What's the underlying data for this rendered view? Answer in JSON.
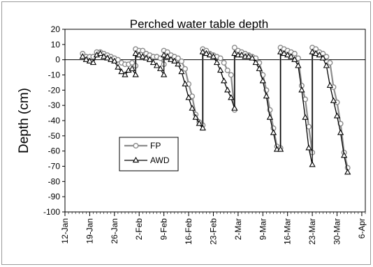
{
  "chart_data": {
    "type": "line",
    "title": "Perched water table  depth",
    "xlabel": "",
    "ylabel": "Depth (cm)",
    "ylim": [
      -100,
      20
    ],
    "yticks": [
      20,
      10,
      0,
      -10,
      -20,
      -30,
      -40,
      -50,
      -60,
      -70,
      -80,
      -90,
      -100
    ],
    "xlim": [
      "2008-01-12",
      "2008-04-06"
    ],
    "xtick_labels": [
      "12-Jan",
      "19-Jan",
      "26-Jan",
      "2-Feb",
      "9-Feb",
      "16-Feb",
      "23-Feb",
      "2-Mar",
      "9-Mar",
      "16-Mar",
      "23-Mar",
      "30-Mar",
      "6-Apr"
    ],
    "grid": false,
    "zero_line": true,
    "legend_position": "lower-left",
    "series": [
      {
        "name": "FP",
        "color": "#8c8c8c",
        "marker": "circle",
        "points": [
          [
            "2008-01-17",
            4
          ],
          [
            "2008-01-18",
            2
          ],
          [
            "2008-01-19",
            2
          ],
          [
            "2008-01-20",
            2
          ],
          [
            "2008-01-21",
            5
          ],
          [
            "2008-01-22",
            5
          ],
          [
            "2008-01-23",
            4
          ],
          [
            "2008-01-24",
            3
          ],
          [
            "2008-01-25",
            2
          ],
          [
            "2008-01-26",
            1
          ],
          [
            "2008-01-27",
            0
          ],
          [
            "2008-01-28",
            -2
          ],
          [
            "2008-01-29",
            -3
          ],
          [
            "2008-01-30",
            -3
          ],
          [
            "2008-01-31",
            -2
          ],
          [
            "2008-02-01",
            -4
          ],
          [
            "2008-02-01",
            7
          ],
          [
            "2008-02-02",
            6
          ],
          [
            "2008-02-03",
            6
          ],
          [
            "2008-02-04",
            4
          ],
          [
            "2008-02-05",
            3
          ],
          [
            "2008-02-06",
            2
          ],
          [
            "2008-02-07",
            2
          ],
          [
            "2008-02-08",
            1
          ],
          [
            "2008-02-09",
            -3
          ],
          [
            "2008-02-09",
            6
          ],
          [
            "2008-02-10",
            5
          ],
          [
            "2008-02-11",
            3
          ],
          [
            "2008-02-12",
            2
          ],
          [
            "2008-02-13",
            1
          ],
          [
            "2008-02-14",
            -1
          ],
          [
            "2008-02-15",
            -6
          ],
          [
            "2008-02-16",
            -16
          ],
          [
            "2008-02-17",
            -24
          ],
          [
            "2008-02-18",
            -36
          ],
          [
            "2008-02-19",
            -41
          ],
          [
            "2008-02-20",
            -43
          ],
          [
            "2008-02-20",
            7
          ],
          [
            "2008-02-21",
            6
          ],
          [
            "2008-02-22",
            4
          ],
          [
            "2008-02-23",
            3
          ],
          [
            "2008-02-24",
            2
          ],
          [
            "2008-02-25",
            1
          ],
          [
            "2008-02-26",
            -2
          ],
          [
            "2008-02-27",
            -7
          ],
          [
            "2008-02-28",
            -10
          ],
          [
            "2008-02-29",
            -33
          ],
          [
            "2008-02-29",
            8
          ],
          [
            "2008-03-01",
            6
          ],
          [
            "2008-03-02",
            5
          ],
          [
            "2008-03-03",
            4
          ],
          [
            "2008-03-04",
            3
          ],
          [
            "2008-03-05",
            2
          ],
          [
            "2008-03-06",
            1
          ],
          [
            "2008-03-07",
            -2
          ],
          [
            "2008-03-08",
            -10
          ],
          [
            "2008-03-09",
            -20
          ],
          [
            "2008-03-10",
            -33
          ],
          [
            "2008-03-11",
            -45
          ],
          [
            "2008-03-12",
            -57
          ],
          [
            "2008-03-13",
            -58
          ],
          [
            "2008-03-13",
            8
          ],
          [
            "2008-03-14",
            7
          ],
          [
            "2008-03-15",
            6
          ],
          [
            "2008-03-16",
            5
          ],
          [
            "2008-03-17",
            4
          ],
          [
            "2008-03-18",
            1
          ],
          [
            "2008-03-19",
            -17
          ],
          [
            "2008-03-20",
            -26
          ],
          [
            "2008-03-21",
            -44
          ],
          [
            "2008-03-22",
            -61
          ],
          [
            "2008-03-22",
            8
          ],
          [
            "2008-03-23",
            7
          ],
          [
            "2008-03-24",
            5
          ],
          [
            "2008-03-25",
            4
          ],
          [
            "2008-03-26",
            2
          ],
          [
            "2008-03-27",
            -2
          ],
          [
            "2008-03-28",
            -18
          ],
          [
            "2008-03-29",
            -28
          ],
          [
            "2008-03-30",
            -42
          ],
          [
            "2008-03-31",
            -61
          ],
          [
            "2008-04-01",
            -71
          ]
        ]
      },
      {
        "name": "AWD",
        "color": "#000000",
        "marker": "triangle",
        "points": [
          [
            "2008-01-17",
            2
          ],
          [
            "2008-01-18",
            0
          ],
          [
            "2008-01-19",
            -1
          ],
          [
            "2008-01-20",
            -2
          ],
          [
            "2008-01-21",
            3
          ],
          [
            "2008-01-22",
            4
          ],
          [
            "2008-01-23",
            2
          ],
          [
            "2008-01-24",
            1
          ],
          [
            "2008-01-25",
            0
          ],
          [
            "2008-01-26",
            -1
          ],
          [
            "2008-01-27",
            -5
          ],
          [
            "2008-01-28",
            -8
          ],
          [
            "2008-01-29",
            -10
          ],
          [
            "2008-01-30",
            -7
          ],
          [
            "2008-01-31",
            -6
          ],
          [
            "2008-02-01",
            -10
          ],
          [
            "2008-02-01",
            4
          ],
          [
            "2008-02-02",
            3
          ],
          [
            "2008-02-03",
            2
          ],
          [
            "2008-02-04",
            1
          ],
          [
            "2008-02-05",
            0
          ],
          [
            "2008-02-06",
            -2
          ],
          [
            "2008-02-07",
            -4
          ],
          [
            "2008-02-08",
            -6
          ],
          [
            "2008-02-09",
            -10
          ],
          [
            "2008-02-09",
            3
          ],
          [
            "2008-02-10",
            2
          ],
          [
            "2008-02-11",
            0
          ],
          [
            "2008-02-12",
            -1
          ],
          [
            "2008-02-13",
            -3
          ],
          [
            "2008-02-14",
            -8
          ],
          [
            "2008-02-15",
            -16
          ],
          [
            "2008-02-16",
            -25
          ],
          [
            "2008-02-17",
            -32
          ],
          [
            "2008-02-18",
            -38
          ],
          [
            "2008-02-19",
            -42
          ],
          [
            "2008-02-20",
            -45
          ],
          [
            "2008-02-20",
            5
          ],
          [
            "2008-02-21",
            4
          ],
          [
            "2008-02-22",
            3
          ],
          [
            "2008-02-23",
            2
          ],
          [
            "2008-02-24",
            -2
          ],
          [
            "2008-02-25",
            -7
          ],
          [
            "2008-02-26",
            -14
          ],
          [
            "2008-02-27",
            -20
          ],
          [
            "2008-02-28",
            -25
          ],
          [
            "2008-02-29",
            -32
          ],
          [
            "2008-02-29",
            4
          ],
          [
            "2008-03-01",
            3
          ],
          [
            "2008-03-02",
            3
          ],
          [
            "2008-03-03",
            2
          ],
          [
            "2008-03-04",
            2
          ],
          [
            "2008-03-05",
            1
          ],
          [
            "2008-03-06",
            -2
          ],
          [
            "2008-03-07",
            -6
          ],
          [
            "2008-03-08",
            -14
          ],
          [
            "2008-03-09",
            -24
          ],
          [
            "2008-03-10",
            -38
          ],
          [
            "2008-03-11",
            -48
          ],
          [
            "2008-03-12",
            -59
          ],
          [
            "2008-03-13",
            -59
          ],
          [
            "2008-03-13",
            5
          ],
          [
            "2008-03-14",
            4
          ],
          [
            "2008-03-15",
            3
          ],
          [
            "2008-03-16",
            2
          ],
          [
            "2008-03-17",
            0
          ],
          [
            "2008-03-18",
            -4
          ],
          [
            "2008-03-19",
            -20
          ],
          [
            "2008-03-20",
            -38
          ],
          [
            "2008-03-21",
            -58
          ],
          [
            "2008-03-22",
            -69
          ],
          [
            "2008-03-22",
            5
          ],
          [
            "2008-03-23",
            4
          ],
          [
            "2008-03-24",
            3
          ],
          [
            "2008-03-25",
            1
          ],
          [
            "2008-03-26",
            -4
          ],
          [
            "2008-03-27",
            -17
          ],
          [
            "2008-03-28",
            -27
          ],
          [
            "2008-03-29",
            -37
          ],
          [
            "2008-03-30",
            -48
          ],
          [
            "2008-03-31",
            -63
          ],
          [
            "2008-04-01",
            -74
          ]
        ]
      }
    ]
  }
}
